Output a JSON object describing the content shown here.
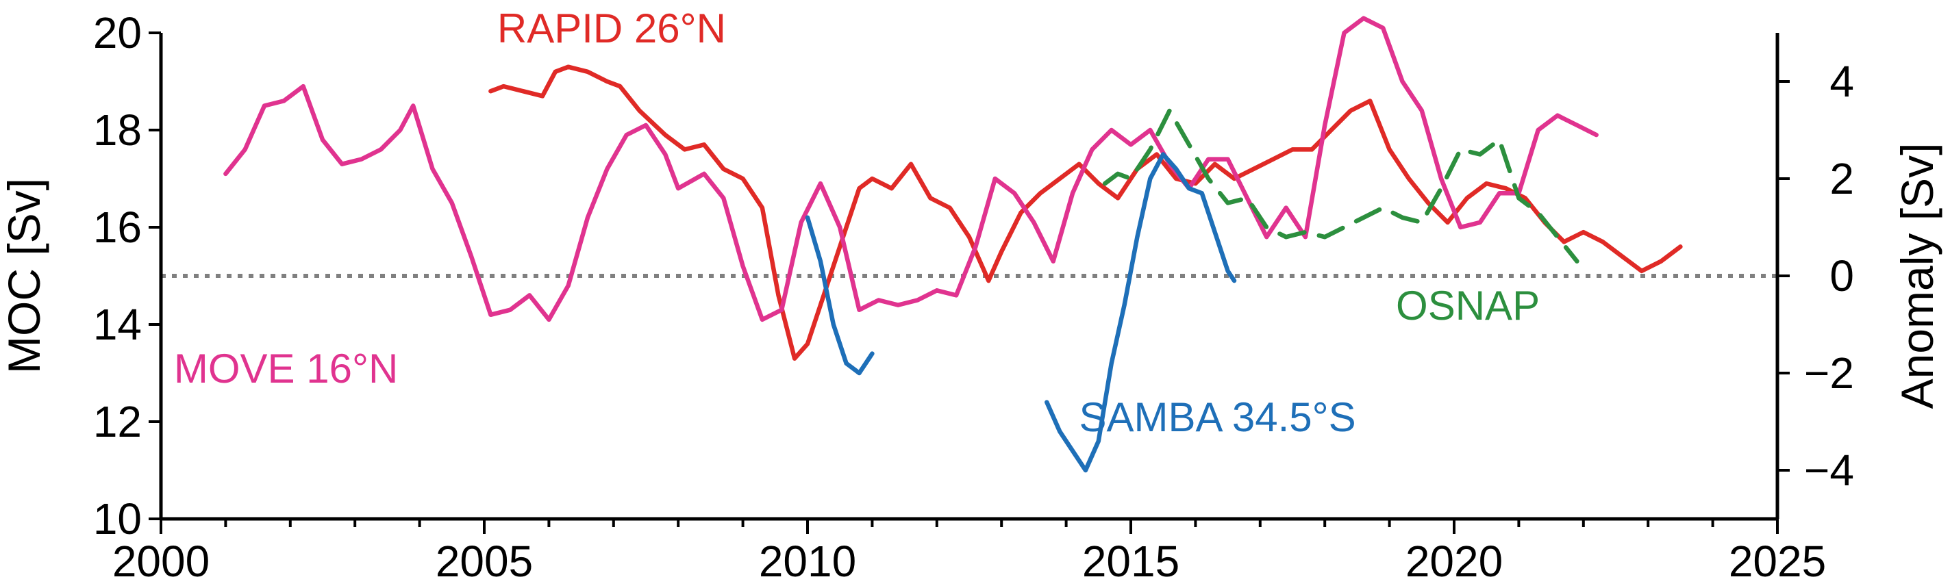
{
  "chart_data": {
    "type": "line",
    "ylabel": "MOC [Sv]",
    "y2label": "Anomaly [Sv]",
    "xlim": [
      2000,
      2025
    ],
    "ylim": [
      10,
      20
    ],
    "y2lim": [
      -5,
      5
    ],
    "xticks": [
      2000,
      2005,
      2010,
      2015,
      2020,
      2025
    ],
    "xticks_minor": [
      2001,
      2002,
      2003,
      2004,
      2006,
      2007,
      2008,
      2009,
      2011,
      2012,
      2013,
      2014,
      2016,
      2017,
      2018,
      2019,
      2021,
      2022,
      2023,
      2024
    ],
    "yticks": [
      10,
      12,
      14,
      16,
      18,
      20
    ],
    "y2ticks": [
      -4,
      -2,
      0,
      2,
      4
    ],
    "y2tick_labels": [
      "−4",
      "−2",
      "0",
      "2",
      "4"
    ],
    "reference_line": {
      "axis": "y2",
      "value": 0,
      "style": "dotted",
      "color": "#808080"
    },
    "series": [
      {
        "name": "RAPID 26°N",
        "axis": "y",
        "color": "#e02a26",
        "style": "solid",
        "x": [
          2005.1,
          2005.3,
          2005.6,
          2005.9,
          2006.1,
          2006.3,
          2006.6,
          2006.9,
          2007.1,
          2007.4,
          2007.8,
          2008.1,
          2008.4,
          2008.7,
          2009.0,
          2009.3,
          2009.55,
          2009.8,
          2010.0,
          2010.2,
          2010.5,
          2010.8,
          2011.0,
          2011.3,
          2011.6,
          2011.9,
          2012.2,
          2012.5,
          2012.8,
          2013.0,
          2013.3,
          2013.6,
          2013.9,
          2014.2,
          2014.5,
          2014.8,
          2015.1,
          2015.4,
          2015.7,
          2016.0,
          2016.3,
          2016.6,
          2016.9,
          2017.2,
          2017.5,
          2017.8,
          2018.1,
          2018.4,
          2018.7,
          2019.0,
          2019.3,
          2019.6,
          2019.9,
          2020.2,
          2020.5,
          2020.8,
          2021.1,
          2021.4,
          2021.7,
          2022.0,
          2022.3,
          2022.6,
          2022.9,
          2023.2,
          2023.5
        ],
        "y": [
          18.8,
          18.9,
          18.8,
          18.7,
          19.2,
          19.3,
          19.2,
          19.0,
          18.9,
          18.4,
          17.9,
          17.6,
          17.7,
          17.2,
          17.0,
          16.4,
          14.6,
          13.3,
          13.6,
          14.4,
          15.6,
          16.8,
          17.0,
          16.8,
          17.3,
          16.6,
          16.4,
          15.8,
          14.9,
          15.5,
          16.3,
          16.7,
          17.0,
          17.3,
          16.9,
          16.6,
          17.2,
          17.5,
          17.0,
          16.9,
          17.3,
          17.0,
          17.2,
          17.4,
          17.6,
          17.6,
          18.0,
          18.4,
          18.6,
          17.6,
          17.0,
          16.5,
          16.1,
          16.6,
          16.9,
          16.8,
          16.6,
          16.1,
          15.7,
          15.9,
          15.7,
          15.4,
          15.1,
          15.3,
          15.6
        ]
      },
      {
        "name": "MOVE 16°N",
        "axis": "y",
        "color": "#e0338f",
        "style": "solid",
        "x": [
          2001.0,
          2001.3,
          2001.6,
          2001.9,
          2002.2,
          2002.5,
          2002.8,
          2003.1,
          2003.4,
          2003.7,
          2003.9,
          2004.2,
          2004.5,
          2004.8,
          2005.1,
          2005.4,
          2005.7,
          2006.0,
          2006.3,
          2006.6,
          2006.9,
          2007.2,
          2007.5,
          2007.8,
          2008.0,
          2008.4,
          2008.7,
          2009.0,
          2009.3,
          2009.6,
          2009.9,
          2010.2,
          2010.5,
          2010.8,
          2011.1,
          2011.4,
          2011.7,
          2012.0,
          2012.3,
          2012.6,
          2012.9,
          2013.2,
          2013.5,
          2013.8,
          2014.1,
          2014.4,
          2014.7,
          2015.0,
          2015.3,
          2015.6,
          2015.9,
          2016.2,
          2016.5,
          2016.8,
          2017.1,
          2017.4,
          2017.7,
          2018.0,
          2018.3,
          2018.6,
          2018.9,
          2019.2,
          2019.5,
          2019.8,
          2020.1,
          2020.4,
          2020.7,
          2021.0,
          2021.3,
          2021.6,
          2021.9,
          2022.2
        ],
        "y": [
          17.1,
          17.6,
          18.5,
          18.6,
          18.9,
          17.8,
          17.3,
          17.4,
          17.6,
          18.0,
          18.5,
          17.2,
          16.5,
          15.4,
          14.2,
          14.3,
          14.6,
          14.1,
          14.8,
          16.2,
          17.2,
          17.9,
          18.1,
          17.5,
          16.8,
          17.1,
          16.6,
          15.2,
          14.1,
          14.3,
          16.1,
          16.9,
          16.0,
          14.3,
          14.5,
          14.4,
          14.5,
          14.7,
          14.6,
          15.6,
          17.0,
          16.7,
          16.1,
          15.3,
          16.7,
          17.6,
          18.0,
          17.7,
          18.0,
          17.3,
          16.8,
          17.4,
          17.4,
          16.6,
          15.8,
          16.4,
          15.8,
          18.1,
          20.0,
          20.3,
          20.1,
          19.0,
          18.4,
          17.0,
          16.0,
          16.1,
          16.7,
          16.7,
          18.0,
          18.3,
          18.1,
          17.9
        ]
      },
      {
        "name": "OSNAP",
        "axis": "y2",
        "color": "#2c8f3e",
        "style": "dashed",
        "x": [
          2014.6,
          2014.8,
          2015.0,
          2015.3,
          2015.6,
          2015.9,
          2016.2,
          2016.5,
          2016.8,
          2017.1,
          2017.4,
          2017.7,
          2018.0,
          2018.3,
          2018.6,
          2018.9,
          2019.2,
          2019.5,
          2019.8,
          2020.1,
          2020.4,
          2020.7,
          2021.0,
          2021.3,
          2021.6,
          2021.9
        ],
        "y": [
          1.9,
          2.1,
          2.0,
          2.6,
          3.4,
          2.7,
          2.0,
          1.5,
          1.6,
          1.0,
          0.8,
          0.9,
          0.8,
          1.0,
          1.2,
          1.4,
          1.2,
          1.1,
          1.8,
          2.6,
          2.5,
          2.8,
          1.6,
          1.3,
          0.8,
          0.3
        ]
      },
      {
        "name": "SAMBA 34.5°S",
        "axis": "y2",
        "color": "#1e6fb8",
        "style": "solid",
        "segments": [
          {
            "x": [
              2010.0,
              2010.2,
              2010.4,
              2010.6,
              2010.8,
              2011.0
            ],
            "y": [
              1.2,
              0.3,
              -1.0,
              -1.8,
              -2.0,
              -1.6
            ]
          },
          {
            "x": [
              2013.7,
              2013.9,
              2014.1,
              2014.3,
              2014.5,
              2014.7,
              2014.9,
              2015.1,
              2015.3,
              2015.5,
              2015.7,
              2015.9,
              2016.1,
              2016.3,
              2016.5,
              2016.6
            ],
            "y": [
              -2.6,
              -3.2,
              -3.6,
              -4.0,
              -3.4,
              -1.8,
              -0.6,
              0.8,
              2.0,
              2.5,
              2.2,
              1.8,
              1.7,
              0.9,
              0.1,
              -0.1
            ]
          }
        ]
      }
    ],
    "annotations": [
      {
        "text": "RAPID 26°N",
        "x": 2005.2,
        "y": 19.8,
        "color": "#e02a26"
      },
      {
        "text": "MOVE 16°N",
        "x": 2000.2,
        "y": 12.8,
        "color": "#e0338f"
      },
      {
        "text": "OSNAP",
        "x": 2019.1,
        "y": 14.1,
        "color": "#2c8f3e"
      },
      {
        "text": "SAMBA 34.5°S",
        "x": 2014.2,
        "y": 11.8,
        "color": "#1e6fb8"
      }
    ]
  }
}
